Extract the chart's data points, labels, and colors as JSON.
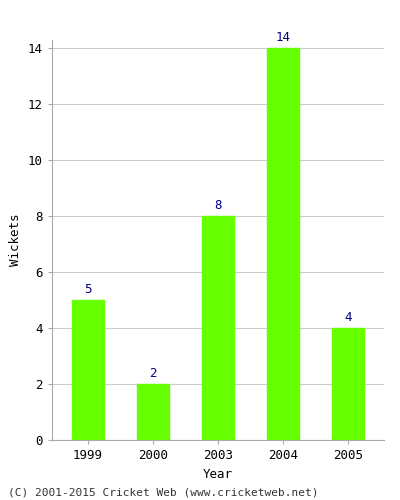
{
  "years": [
    "1999",
    "2000",
    "2003",
    "2004",
    "2005"
  ],
  "wickets": [
    5,
    2,
    8,
    14,
    4
  ],
  "bar_color": "#66ff00",
  "bar_edgecolor": "#66ff00",
  "label_color": "#000080",
  "xlabel": "Year",
  "ylabel": "Wickets",
  "ylim": [
    0,
    14
  ],
  "yticks": [
    0,
    2,
    4,
    6,
    8,
    10,
    12,
    14
  ],
  "footer": "(C) 2001-2015 Cricket Web (www.cricketweb.net)",
  "bg_color": "#ffffff",
  "plot_bg_color": "#ffffff",
  "grid_color": "#cccccc",
  "label_fontsize": 9,
  "axis_label_fontsize": 9,
  "tick_fontsize": 9,
  "footer_fontsize": 8
}
